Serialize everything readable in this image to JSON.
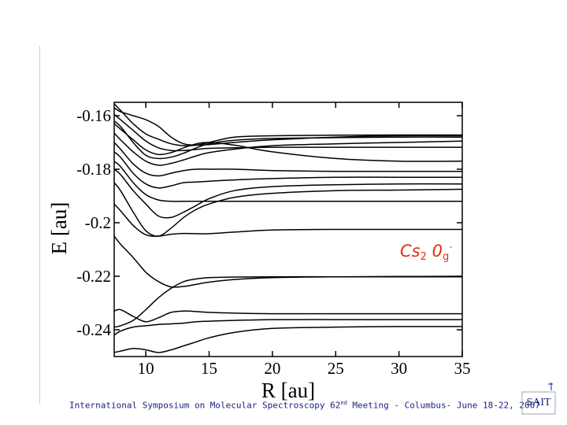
{
  "annotation": {
    "molecule": "Cs",
    "subscript": "2",
    "symmetry": "0",
    "symmetry_sub": "g",
    "symmetry_sup": "-"
  },
  "footer": {
    "before": "International Symposium on Molecular Spectroscopy 62",
    "ordinal": "nd",
    "after": " Meeting - Columbus- June 18-22, 2007"
  },
  "logo": {
    "name": "institution-logo",
    "text": "SAIT"
  },
  "chart_data": {
    "type": "line",
    "title": "",
    "xlabel": "R [au]",
    "ylabel": "E [au]",
    "xlim": [
      7.5,
      35
    ],
    "ylim": [
      -0.25,
      -0.155
    ],
    "xticks": [
      10,
      15,
      20,
      25,
      30,
      35
    ],
    "yticks": [
      -0.16,
      -0.18,
      -0.2,
      -0.22,
      -0.24
    ],
    "ytick_labels": [
      "-0.16",
      "-0.18",
      "-0.2",
      "-0.22",
      "-0.24"
    ],
    "grid": false,
    "line_color": "#000000",
    "series": [
      {
        "x": [
          7.5,
          8,
          9,
          10,
          11,
          12,
          13,
          14,
          15,
          17,
          20,
          25,
          30,
          35
        ],
        "y": [
          -0.2485,
          -0.248,
          -0.247,
          -0.2475,
          -0.2485,
          -0.2475,
          -0.246,
          -0.2445,
          -0.243,
          -0.241,
          -0.2395,
          -0.239,
          -0.2388,
          -0.2388
        ]
      },
      {
        "x": [
          7.5,
          8,
          9,
          10,
          11,
          12,
          13,
          14,
          15,
          17,
          20,
          25,
          30,
          35
        ],
        "y": [
          -0.242,
          -0.2405,
          -0.239,
          -0.2385,
          -0.238,
          -0.2378,
          -0.2375,
          -0.237,
          -0.2368,
          -0.2365,
          -0.2362,
          -0.2362,
          -0.2362,
          -0.2362
        ]
      },
      {
        "x": [
          7.5,
          8,
          9,
          10,
          11,
          12,
          13,
          14,
          15,
          17,
          20,
          25,
          30,
          35
        ],
        "y": [
          -0.239,
          -0.2385,
          -0.2365,
          -0.2325,
          -0.228,
          -0.2245,
          -0.222,
          -0.221,
          -0.2205,
          -0.2203,
          -0.2202,
          -0.2202,
          -0.2202,
          -0.2202
        ]
      },
      {
        "x": [
          7.5,
          8,
          9,
          10,
          11,
          12,
          13,
          14,
          15,
          17,
          20,
          25,
          30,
          35
        ],
        "y": [
          -0.233,
          -0.2325,
          -0.235,
          -0.237,
          -0.2355,
          -0.2335,
          -0.233,
          -0.2332,
          -0.2335,
          -0.2338,
          -0.234,
          -0.234,
          -0.234,
          -0.234
        ]
      },
      {
        "x": [
          7.5,
          8,
          9,
          10,
          11,
          12,
          13,
          14,
          15,
          17,
          20,
          25,
          30,
          35
        ],
        "y": [
          -0.205,
          -0.208,
          -0.213,
          -0.2185,
          -0.222,
          -0.224,
          -0.2238,
          -0.223,
          -0.2222,
          -0.2212,
          -0.2205,
          -0.2202,
          -0.2201,
          -0.22
        ]
      },
      {
        "x": [
          7.5,
          8,
          9,
          10,
          11,
          12,
          13,
          14,
          15,
          17,
          20,
          25,
          30,
          35
        ],
        "y": [
          -0.193,
          -0.1955,
          -0.201,
          -0.2045,
          -0.205,
          -0.2043,
          -0.204,
          -0.2041,
          -0.2041,
          -0.2035,
          -0.2027,
          -0.2025,
          -0.2025,
          -0.2025
        ]
      },
      {
        "x": [
          7.5,
          8,
          9,
          10,
          11,
          12,
          13,
          14,
          15,
          17,
          20,
          25,
          30,
          35
        ],
        "y": [
          -0.185,
          -0.188,
          -0.196,
          -0.203,
          -0.205,
          -0.202,
          -0.198,
          -0.195,
          -0.193,
          -0.1905,
          -0.189,
          -0.188,
          -0.1878,
          -0.1875
        ]
      },
      {
        "x": [
          7.5,
          8,
          9,
          10,
          11,
          12,
          13,
          14,
          15,
          17,
          20,
          25,
          30,
          35
        ],
        "y": [
          -0.18,
          -0.182,
          -0.188,
          -0.193,
          -0.1975,
          -0.198,
          -0.196,
          -0.1935,
          -0.191,
          -0.188,
          -0.1865,
          -0.1858,
          -0.1855,
          -0.1855
        ]
      },
      {
        "x": [
          7.5,
          8,
          9,
          10,
          11,
          12,
          13,
          14,
          15,
          17,
          20,
          25,
          30,
          35
        ],
        "y": [
          -0.177,
          -0.179,
          -0.185,
          -0.1895,
          -0.1915,
          -0.192,
          -0.192,
          -0.192,
          -0.192,
          -0.192,
          -0.192,
          -0.192,
          -0.192,
          -0.192
        ]
      },
      {
        "x": [
          7.5,
          8,
          9,
          10,
          11,
          12,
          13,
          14,
          15,
          17,
          20,
          25,
          30,
          35
        ],
        "y": [
          -0.1735,
          -0.1755,
          -0.1815,
          -0.1855,
          -0.187,
          -0.1862,
          -0.185,
          -0.1848,
          -0.1845,
          -0.184,
          -0.1835,
          -0.183,
          -0.183,
          -0.183
        ]
      },
      {
        "x": [
          7.5,
          8,
          9,
          10,
          11,
          12,
          13,
          14,
          15,
          17,
          20,
          25,
          30,
          35
        ],
        "y": [
          -0.17,
          -0.1725,
          -0.178,
          -0.1815,
          -0.1825,
          -0.1815,
          -0.1805,
          -0.18,
          -0.18,
          -0.18,
          -0.1805,
          -0.1808,
          -0.1808,
          -0.1808
        ]
      },
      {
        "x": [
          7.5,
          8,
          9,
          10,
          11,
          12,
          13,
          14,
          15,
          17,
          20,
          25,
          30,
          35
        ],
        "y": [
          -0.1665,
          -0.169,
          -0.1735,
          -0.177,
          -0.1785,
          -0.1778,
          -0.1765,
          -0.175,
          -0.1738,
          -0.1725,
          -0.1712,
          -0.1705,
          -0.17,
          -0.1695
        ]
      },
      {
        "x": [
          7.5,
          8,
          9,
          10,
          11,
          12,
          13,
          14,
          15,
          17,
          20,
          25,
          30,
          35
        ],
        "y": [
          -0.163,
          -0.165,
          -0.169,
          -0.1728,
          -0.1745,
          -0.1738,
          -0.172,
          -0.1705,
          -0.17,
          -0.171,
          -0.1735,
          -0.176,
          -0.177,
          -0.177
        ]
      },
      {
        "x": [
          7.5,
          8,
          9,
          10,
          11,
          12,
          13,
          14,
          15,
          17,
          20,
          25,
          30,
          35
        ],
        "y": [
          -0.1595,
          -0.1615,
          -0.1655,
          -0.1695,
          -0.172,
          -0.173,
          -0.173,
          -0.1726,
          -0.1722,
          -0.172,
          -0.1718,
          -0.1718,
          -0.1718,
          -0.1718
        ]
      },
      {
        "x": [
          7.5,
          8,
          9,
          10,
          11,
          12,
          13,
          14,
          15,
          17,
          20,
          25,
          30,
          35
        ],
        "y": [
          -0.1555,
          -0.158,
          -0.163,
          -0.1668,
          -0.1688,
          -0.1705,
          -0.1712,
          -0.171,
          -0.17,
          -0.168,
          -0.1675,
          -0.1673,
          -0.1672,
          -0.1672
        ]
      },
      {
        "x": [
          7.5,
          8,
          9,
          10,
          11,
          12,
          13,
          14,
          15,
          17,
          20,
          25,
          30,
          35
        ],
        "y": [
          -0.157,
          -0.1585,
          -0.16,
          -0.1615,
          -0.164,
          -0.168,
          -0.1705,
          -0.171,
          -0.1708,
          -0.17,
          -0.169,
          -0.168,
          -0.1675,
          -0.1675
        ]
      },
      {
        "x": [
          7.5,
          8,
          9,
          10,
          11,
          12,
          13,
          14,
          15,
          17,
          20,
          25,
          30,
          35
        ],
        "y": [
          -0.162,
          -0.164,
          -0.17,
          -0.1748,
          -0.176,
          -0.1755,
          -0.174,
          -0.172,
          -0.1705,
          -0.1692,
          -0.1685,
          -0.1682,
          -0.168,
          -0.168
        ]
      }
    ]
  }
}
